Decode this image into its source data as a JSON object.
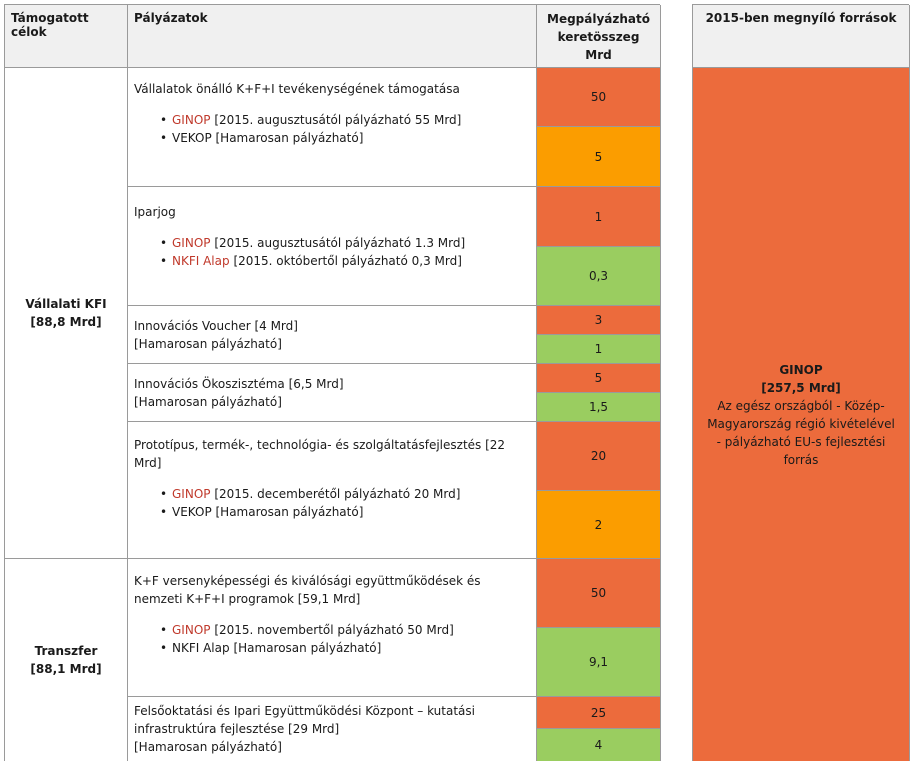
{
  "header": {
    "col1": "Támogatott célok",
    "col2": "Pályázatok",
    "col3_line1": "Megpályázható",
    "col3_line2": "keretösszeg",
    "col3_line3": "Mrd",
    "col4": "2015-ben megnyíló források"
  },
  "groups": {
    "kfi": {
      "name": "Vállalati KFI",
      "amount": "[88,8 Mrd]"
    },
    "transzfer": {
      "name": "Transzfer",
      "amount": "[88,1 Mrd]"
    }
  },
  "rows": {
    "r1": {
      "title": "Vállalatok önálló K+F+I tevékenységének támogatása",
      "b1_label": "GINOP",
      "b1_text": " [2015. augusztusától pályázható 55 Mrd]",
      "b2_label": "VEKOP",
      "b2_text": " [Hamarosan pályázható]",
      "v1": "50",
      "v2": "5"
    },
    "r2": {
      "title": "Iparjog",
      "b1_label": "GINOP",
      "b1_text": " [2015. augusztusától pályázható 1.3 Mrd]",
      "b2_label": "NKFI Alap",
      "b2_text": " [2015. októbertől pályázható 0,3 Mrd]",
      "v1": "1",
      "v2": "0,3"
    },
    "r3": {
      "line1": "Innovációs Voucher [4 Mrd]",
      "line2": "[Hamarosan pályázható]",
      "v1": "3",
      "v2": "1"
    },
    "r4": {
      "line1": "Innovációs Ökoszisztéma [6,5 Mrd]",
      "line2": "[Hamarosan pályázható]",
      "v1": "5",
      "v2": "1,5"
    },
    "r5": {
      "line1": "Prototípus, termék-, technológia- és szolgáltatásfejlesztés [22",
      "line2": "Mrd]",
      "b1_label": "GINOP",
      "b1_text": " [2015. decemberétől pályázható 20 Mrd]",
      "b2_label": "VEKOP",
      "b2_text": " [Hamarosan pályázható]",
      "v1": "20",
      "v2": "2"
    },
    "r6": {
      "line1": "K+F versenyképességi és kiválósági együttműködések és",
      "line2": "nemzeti K+F+I programok [59,1 Mrd]",
      "b1_label": "GINOP",
      "b1_text": " [2015. novembertől pályázható 50 Mrd]",
      "b2_label": "NKFI Alap",
      "b2_text": " [Hamarosan pályázható]",
      "v1": "50",
      "v2": "9,1"
    },
    "r7": {
      "line1": "Felsőoktatási és Ipari Együttműködési Központ – kutatási",
      "line2": "infrastruktúra fejlesztése [29 Mrd]",
      "line3": "[Hamarosan pályázható]",
      "v1": "25",
      "v2": "4"
    }
  },
  "sources": {
    "name": "GINOP",
    "amount": "[257,5 Mrd]",
    "d1": "Az egész országból - Közép-",
    "d2": "Magyarország régió kivételével",
    "d3": "- pályázható EU-s fejlesztési",
    "d4": "forrás"
  },
  "colors": {
    "orange": "#ec6b3c",
    "amber": "#fb9d00",
    "green": "#9acd60",
    "header": "#f0f0f0"
  }
}
